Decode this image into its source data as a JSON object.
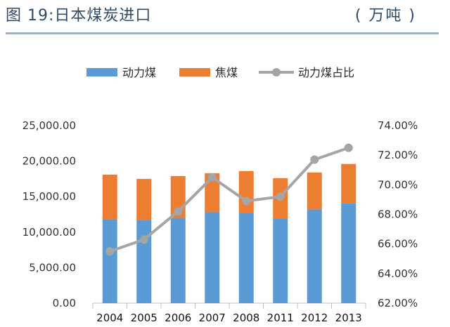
{
  "header": {
    "title": "图 19:日本煤炭进口",
    "unit": "( 万吨 )"
  },
  "chart_data": {
    "type": "bar",
    "stacked": true,
    "categories": [
      "2004",
      "2005",
      "2006",
      "2007",
      "2008",
      "2011",
      "2012",
      "2013"
    ],
    "series": [
      {
        "name": "动力煤",
        "axis": "left",
        "color": "#5b9bd5",
        "values": [
          11800,
          11700,
          12000,
          12800,
          12700,
          11900,
          13200,
          14100
        ]
      },
      {
        "name": "焦煤",
        "axis": "left",
        "color": "#ed7d31",
        "values": [
          6300,
          5800,
          5900,
          5500,
          5900,
          5700,
          5200,
          5500
        ]
      },
      {
        "name": "动力煤占比",
        "type": "line",
        "axis": "right",
        "color": "#a5a5a5",
        "values": [
          65.5,
          66.3,
          68.2,
          70.5,
          68.9,
          69.2,
          71.7,
          72.5
        ]
      }
    ],
    "yleft": {
      "min": 0,
      "max": 25000,
      "step": 5000,
      "ticks": [
        "0.00",
        "5,000.00",
        "10,000.00",
        "15,000.00",
        "20,000.00",
        "25,000.00"
      ]
    },
    "yright": {
      "min": 62,
      "max": 74,
      "step": 2,
      "ticks": [
        "62.00%",
        "64.00%",
        "66.00%",
        "68.00%",
        "70.00%",
        "72.00%",
        "74.00%"
      ]
    },
    "legend": [
      "动力煤",
      "焦煤",
      "动力煤占比"
    ],
    "grid": false
  }
}
